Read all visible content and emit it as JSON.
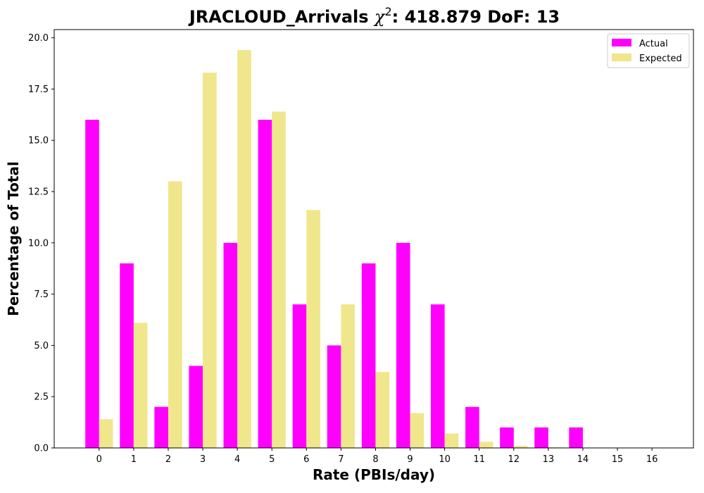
{
  "chart_data": {
    "type": "bar",
    "title": "JRACLOUD_Arrivals χ²: 418.879 DoF: 13",
    "title_parts": {
      "prefix": "JRACLOUD_Arrivals ",
      "chi_symbol": "χ",
      "chi_superscript": "2",
      "suffix": ": 418.879 DoF: 13"
    },
    "xlabel": "Rate (PBIs/day)",
    "ylabel": "Percentage of Total",
    "categories": [
      "0",
      "1",
      "2",
      "3",
      "4",
      "5",
      "6",
      "7",
      "8",
      "9",
      "10",
      "11",
      "12",
      "13",
      "14",
      "15",
      "16"
    ],
    "yticks": [
      "0.0",
      "2.5",
      "5.0",
      "7.5",
      "10.0",
      "12.5",
      "15.0",
      "17.5",
      "20.0"
    ],
    "ylim": [
      0,
      20.4
    ],
    "xlim": [
      -1.3,
      17.2
    ],
    "grid": false,
    "legend_position": "top-right",
    "series": [
      {
        "name": "Actual",
        "color": "#ff00ff",
        "values": [
          16,
          9,
          2,
          4,
          10,
          16,
          7,
          5,
          9,
          10,
          7,
          2,
          1,
          1,
          1,
          0,
          0
        ]
      },
      {
        "name": "Expected",
        "color": "#f0e68c",
        "values": [
          1.4,
          6.1,
          13.0,
          18.3,
          19.4,
          16.4,
          11.6,
          7.0,
          3.7,
          1.7,
          0.7,
          0.3,
          0.1,
          0.03,
          0.01,
          0.0,
          0.0
        ]
      }
    ]
  }
}
